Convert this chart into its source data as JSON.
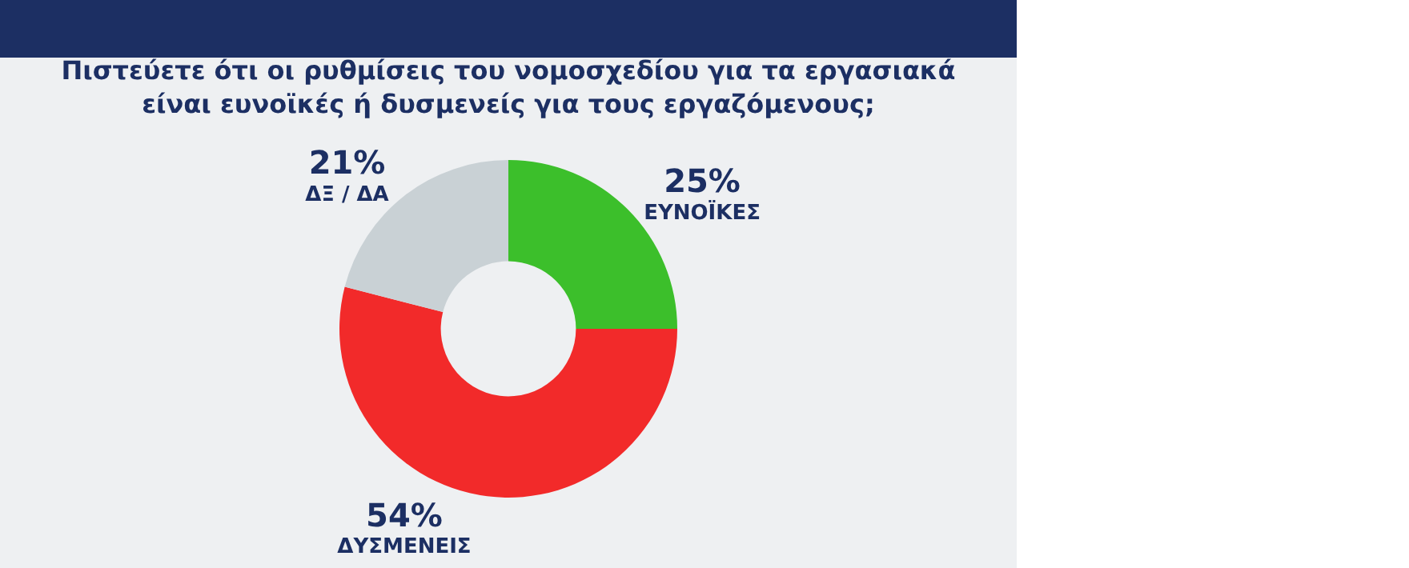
{
  "chart_data": {
    "type": "donut",
    "title": "Πιστεύετε ότι οι ρυθμίσεις του νομοσχεδίου για τα εργασιακά\nείναι ευνοϊκές ή δυσμενείς για τους εργαζόμενους;",
    "categories": [
      "ΕΥΝΟΪΚΕΣ",
      "ΔΥΣΜΕΝΕΙΣ",
      "ΔΞ / ΔΑ"
    ],
    "values": [
      25,
      54,
      21
    ],
    "value_labels": [
      "25%",
      "54%",
      "21%"
    ],
    "colors": [
      "#3cbf2b",
      "#f22a2a",
      "#c9d1d5"
    ],
    "legend": false
  }
}
